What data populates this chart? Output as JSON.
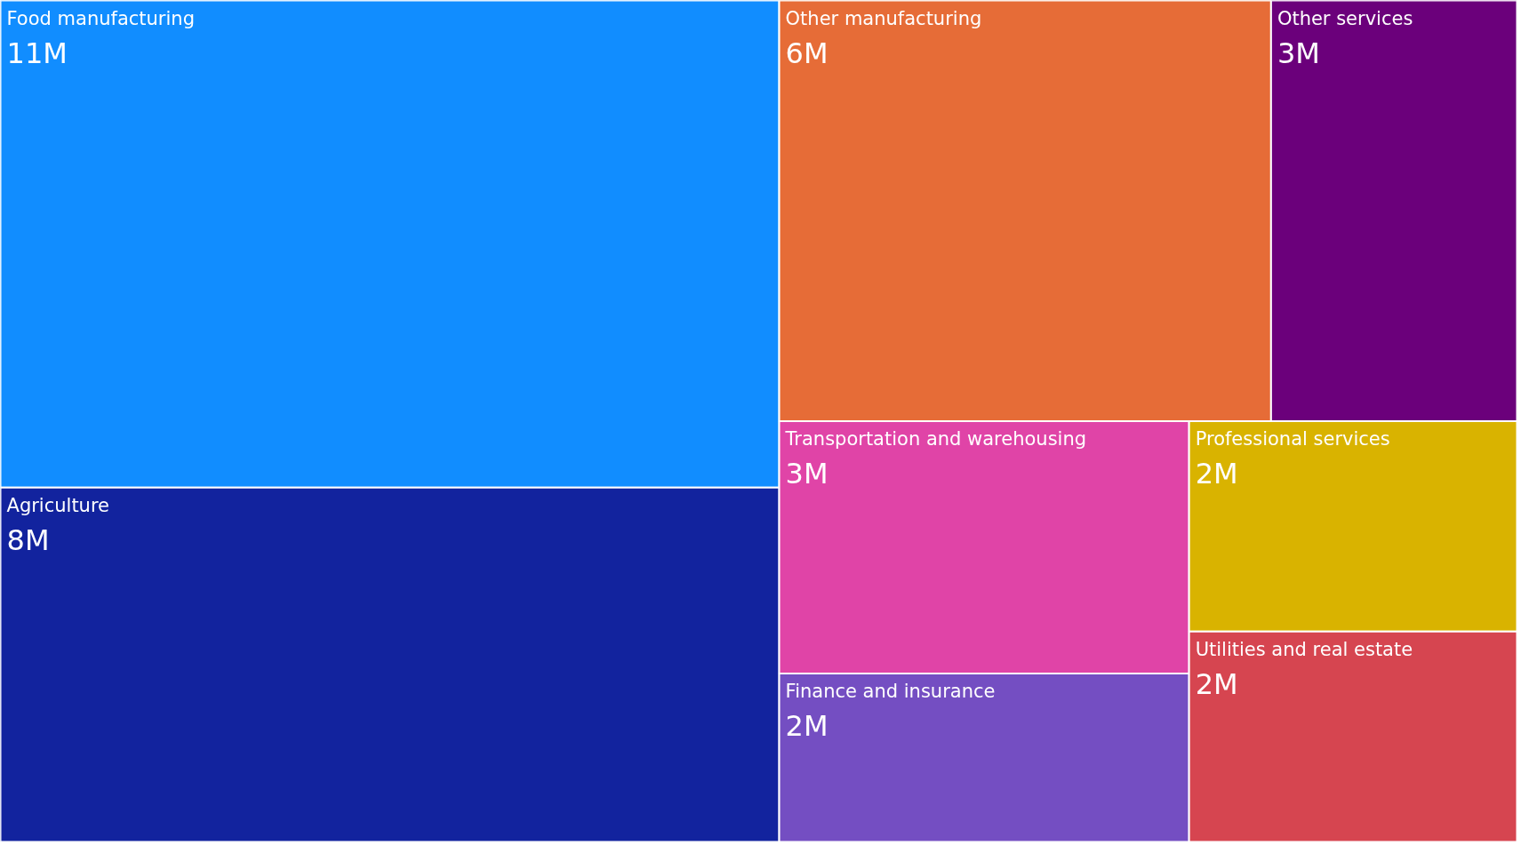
{
  "chart_data": {
    "type": "other",
    "categories": [
      "Food manufacturing",
      "Agriculture",
      "Other manufacturing",
      "Other services",
      "Transportation and warehousing",
      "Finance and insurance",
      "Professional services",
      "Utilities and real estate"
    ],
    "values": [
      11,
      8,
      6,
      3,
      3,
      2,
      2,
      2
    ],
    "value_labels": [
      "11M",
      "8M",
      "6M",
      "3M",
      "3M",
      "2M",
      "2M",
      "2M"
    ],
    "colors": [
      "#118dff",
      "#12239e",
      "#e66c37",
      "#6b007b",
      "#e044a7",
      "#744ec2",
      "#d9b300",
      "#d64550"
    ]
  }
}
